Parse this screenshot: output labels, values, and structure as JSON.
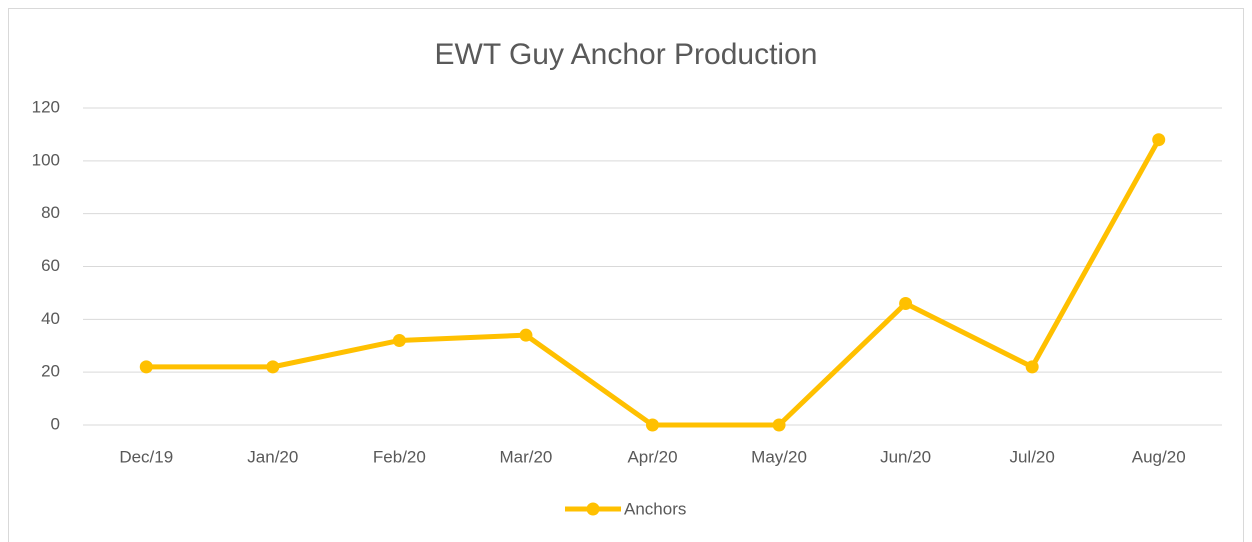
{
  "chart_data": {
    "type": "line",
    "title": "EWT Guy Anchor Production",
    "categories": [
      "Dec/19",
      "Jan/20",
      "Feb/20",
      "Mar/20",
      "Apr/20",
      "May/20",
      "Jun/20",
      "Jul/20",
      "Aug/20"
    ],
    "series": [
      {
        "name": "Anchors",
        "color": "#ffc000",
        "values": [
          22,
          22,
          32,
          34,
          0,
          0,
          46,
          22,
          108
        ]
      }
    ],
    "ylim": [
      0,
      120
    ],
    "yticks": [
      0,
      20,
      40,
      60,
      80,
      100,
      120
    ],
    "grid": true,
    "legend": "bottom"
  }
}
